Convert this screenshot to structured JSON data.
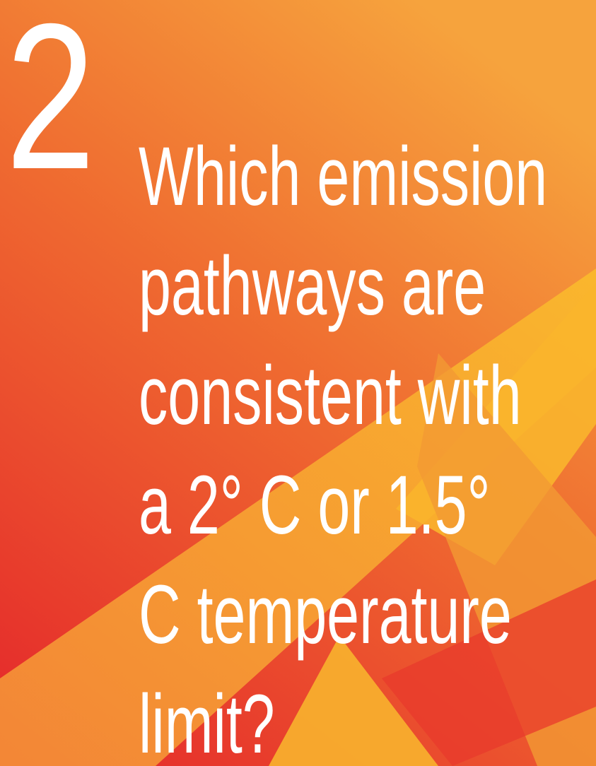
{
  "heading": {
    "number": "2",
    "lines": [
      "Which emission",
      "pathways are",
      "consistent with",
      "a 2° C or 1.5°",
      "C temperature",
      "limit?"
    ]
  }
}
